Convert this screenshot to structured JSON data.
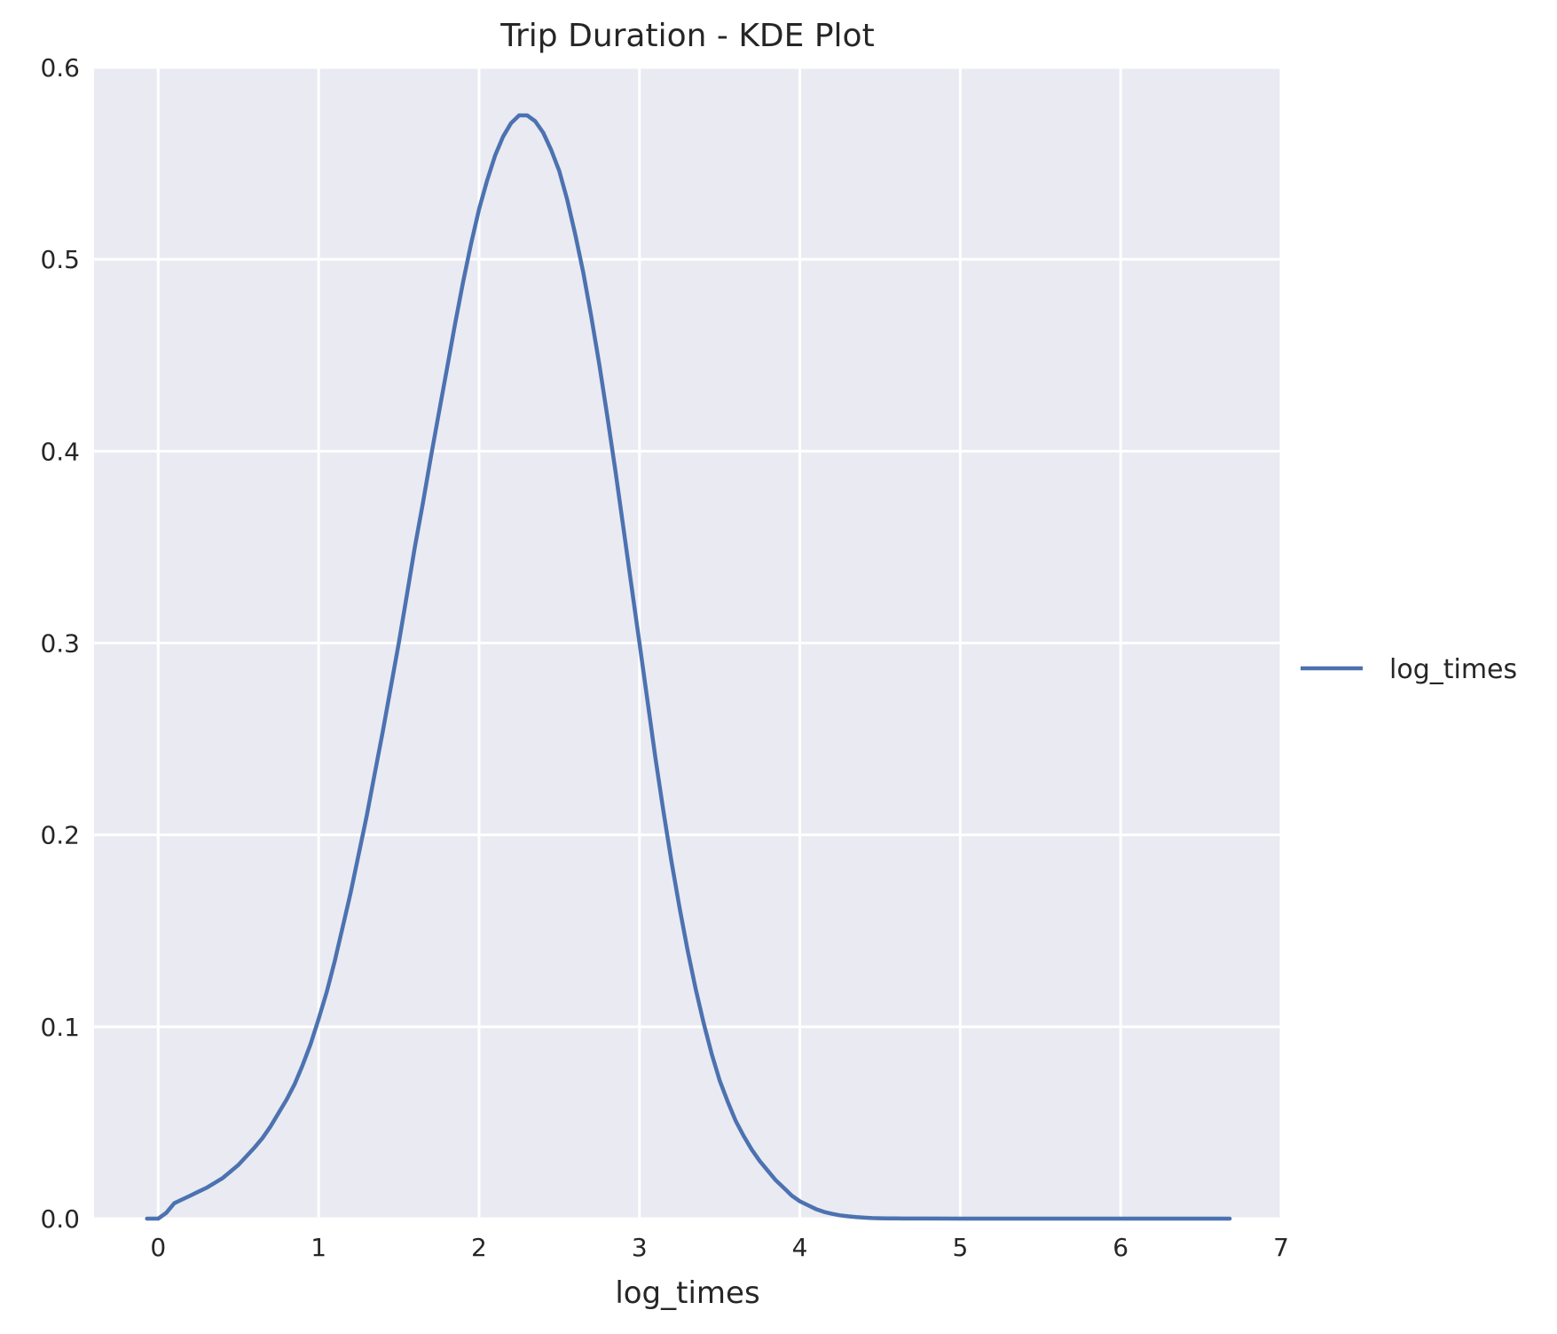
{
  "chart_data": {
    "type": "line",
    "title": "Trip Duration - KDE Plot",
    "xlabel": "log_times",
    "ylabel": "",
    "xlim": [
      -0.4,
      7.0
    ],
    "ylim": [
      0.0,
      0.6
    ],
    "xticks": [
      0,
      1,
      2,
      3,
      4,
      5,
      6,
      7
    ],
    "yticks": [
      0.0,
      0.1,
      0.2,
      0.3,
      0.4,
      0.5,
      0.6
    ],
    "xtick_labels": [
      "0",
      "1",
      "2",
      "3",
      "4",
      "5",
      "6",
      "7"
    ],
    "ytick_labels": [
      "0.0",
      "0.1",
      "0.2",
      "0.3",
      "0.4",
      "0.5",
      "0.6"
    ],
    "grid": true,
    "legend": "right-outside",
    "series": [
      {
        "name": "log_times",
        "color": "#4c72b0",
        "x": [
          -0.07,
          0.0,
          0.05,
          0.1,
          0.15,
          0.2,
          0.25,
          0.3,
          0.4,
          0.5,
          0.6,
          0.65,
          0.7,
          0.8,
          0.85,
          0.9,
          0.95,
          1.0,
          1.05,
          1.1,
          1.15,
          1.2,
          1.3,
          1.35,
          1.4,
          1.45,
          1.5,
          1.55,
          1.6,
          1.65,
          1.7,
          1.75,
          1.8,
          1.85,
          1.9,
          1.95,
          2.0,
          2.05,
          2.1,
          2.15,
          2.2,
          2.25,
          2.3,
          2.35,
          2.4,
          2.45,
          2.5,
          2.55,
          2.6,
          2.65,
          2.7,
          2.75,
          2.8,
          2.85,
          2.9,
          2.95,
          3.0,
          3.05,
          3.1,
          3.15,
          3.2,
          3.25,
          3.3,
          3.35,
          3.4,
          3.45,
          3.5,
          3.55,
          3.6,
          3.65,
          3.7,
          3.75,
          3.8,
          3.85,
          3.9,
          3.95,
          4.0,
          4.05,
          4.1,
          4.15,
          4.2,
          4.25,
          4.3,
          4.35,
          4.4,
          4.45,
          4.5,
          4.55,
          4.6,
          4.7,
          4.8,
          5.0,
          5.5,
          6.0,
          6.68
        ],
        "values": [
          0.0,
          0.0,
          0.003,
          0.008,
          0.01,
          0.012,
          0.014,
          0.016,
          0.021,
          0.028,
          0.037,
          0.042,
          0.048,
          0.062,
          0.07,
          0.08,
          0.091,
          0.104,
          0.118,
          0.134,
          0.152,
          0.17,
          0.21,
          0.232,
          0.254,
          0.277,
          0.3,
          0.325,
          0.35,
          0.373,
          0.397,
          0.42,
          0.443,
          0.466,
          0.488,
          0.508,
          0.526,
          0.541,
          0.554,
          0.564,
          0.571,
          0.575,
          0.575,
          0.572,
          0.566,
          0.557,
          0.546,
          0.531,
          0.513,
          0.493,
          0.47,
          0.445,
          0.418,
          0.39,
          0.36,
          0.33,
          0.3,
          0.27,
          0.24,
          0.212,
          0.186,
          0.162,
          0.14,
          0.12,
          0.102,
          0.086,
          0.072,
          0.061,
          0.051,
          0.043,
          0.036,
          0.03,
          0.025,
          0.02,
          0.016,
          0.012,
          0.009,
          0.007,
          0.005,
          0.0035,
          0.0025,
          0.0017,
          0.0012,
          0.0008,
          0.0005,
          0.0003,
          0.0002,
          0.0001,
          8e-05,
          5e-05,
          3e-05,
          1e-05,
          0.0,
          0.0,
          0.0
        ]
      }
    ]
  }
}
